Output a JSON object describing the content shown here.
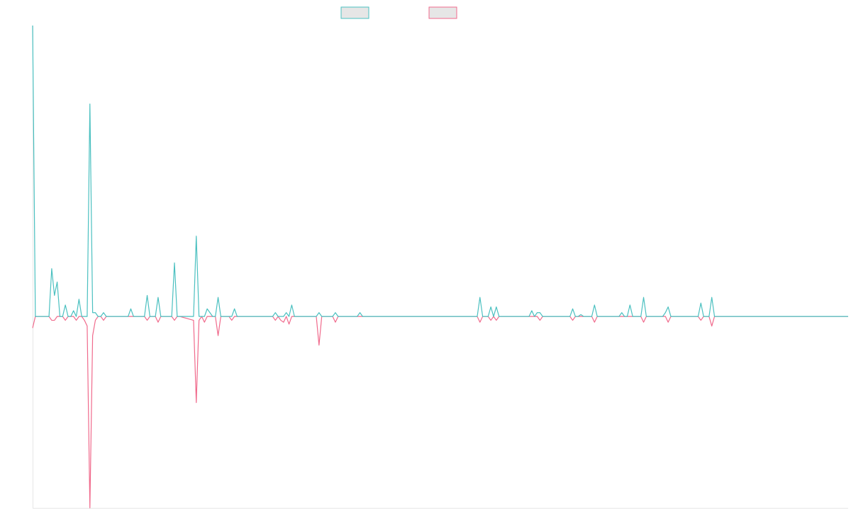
{
  "colors": {
    "series_a": "#4bc0c0",
    "series_b": "#f06a8c",
    "axis": "#e6e6e6",
    "legend_fill": "#e6e6e6"
  },
  "legend": {
    "placement": "top-center",
    "entries": [
      {
        "color": "#4bc0c0",
        "label": ""
      },
      {
        "color": "#f06a8c",
        "label": ""
      }
    ]
  },
  "chart_data": {
    "type": "line",
    "title": "",
    "xlabel": "",
    "ylabel": "",
    "grid": false,
    "ylim": [
      -1.0,
      1.52
    ],
    "x_count": 300,
    "series": [
      {
        "points": [
          [
            0,
            1.52
          ],
          [
            1,
            0.0
          ],
          [
            6,
            0.0
          ],
          [
            7,
            0.25
          ],
          [
            8,
            0.11
          ],
          [
            9,
            0.18
          ],
          [
            10,
            0.0
          ],
          [
            11,
            0.0
          ],
          [
            12,
            0.06
          ],
          [
            13,
            0.0
          ],
          [
            14,
            0.0
          ],
          [
            15,
            0.03
          ],
          [
            16,
            0.0
          ],
          [
            17,
            0.09
          ],
          [
            18,
            0.0
          ],
          [
            19,
            0.0
          ],
          [
            20,
            0.0
          ],
          [
            21,
            1.11
          ],
          [
            22,
            0.02
          ],
          [
            23,
            0.02
          ],
          [
            24,
            0.0
          ],
          [
            25,
            0.0
          ],
          [
            26,
            0.02
          ],
          [
            27,
            0.0
          ],
          [
            35,
            0.0
          ],
          [
            36,
            0.04
          ],
          [
            37,
            0.0
          ],
          [
            38,
            0.0
          ],
          [
            39,
            0.0
          ],
          [
            40,
            0.0
          ],
          [
            41,
            0.0
          ],
          [
            42,
            0.11
          ],
          [
            43,
            0.0
          ],
          [
            44,
            0.0
          ],
          [
            45,
            0.0
          ],
          [
            46,
            0.1
          ],
          [
            47,
            0.0
          ],
          [
            48,
            0.0
          ],
          [
            49,
            0.0
          ],
          [
            51,
            0.0
          ],
          [
            52,
            0.28
          ],
          [
            53,
            0.0
          ],
          [
            54,
            0.0
          ],
          [
            59,
            0.0
          ],
          [
            60,
            0.42
          ],
          [
            61,
            0.0
          ],
          [
            62,
            0.0
          ],
          [
            63,
            0.0
          ],
          [
            64,
            0.04
          ],
          [
            65,
            0.02
          ],
          [
            66,
            0.0
          ],
          [
            67,
            0.0
          ],
          [
            68,
            0.1
          ],
          [
            69,
            0.0
          ],
          [
            70,
            0.0
          ],
          [
            71,
            0.0
          ],
          [
            72,
            0.0
          ],
          [
            73,
            0.0
          ],
          [
            74,
            0.04
          ],
          [
            75,
            0.0
          ],
          [
            79,
            0.0
          ],
          [
            80,
            0.0
          ],
          [
            81,
            0.0
          ],
          [
            82,
            0.0
          ],
          [
            88,
            0.0
          ],
          [
            89,
            0.02
          ],
          [
            90,
            0.0
          ],
          [
            91,
            0.0
          ],
          [
            92,
            0.0
          ],
          [
            93,
            0.02
          ],
          [
            94,
            0.0
          ],
          [
            95,
            0.06
          ],
          [
            96,
            0.0
          ],
          [
            100,
            0.0
          ],
          [
            101,
            0.0
          ],
          [
            102,
            0.0
          ],
          [
            104,
            0.0
          ],
          [
            105,
            0.02
          ],
          [
            106,
            0.0
          ],
          [
            110,
            0.0
          ],
          [
            111,
            0.02
          ],
          [
            112,
            0.0
          ],
          [
            119,
            0.0
          ],
          [
            120,
            0.02
          ],
          [
            121,
            0.0
          ],
          [
            126,
            0.0
          ],
          [
            127,
            0.0
          ],
          [
            128,
            0.0
          ],
          [
            129,
            0.0
          ],
          [
            130,
            0.0
          ],
          [
            163,
            0.0
          ],
          [
            164,
            0.1
          ],
          [
            165,
            0.0
          ],
          [
            166,
            0.0
          ],
          [
            167,
            0.0
          ],
          [
            168,
            0.05
          ],
          [
            169,
            0.0
          ],
          [
            170,
            0.05
          ],
          [
            171,
            0.0
          ],
          [
            172,
            0.0
          ],
          [
            180,
            0.0
          ],
          [
            181,
            0.0
          ],
          [
            182,
            0.0
          ],
          [
            183,
            0.03
          ],
          [
            184,
            0.0
          ],
          [
            185,
            0.02
          ],
          [
            186,
            0.02
          ],
          [
            187,
            0.0
          ],
          [
            197,
            0.0
          ],
          [
            198,
            0.04
          ],
          [
            199,
            0.0
          ],
          [
            200,
            0.0
          ],
          [
            201,
            0.01
          ],
          [
            202,
            0.0
          ],
          [
            203,
            0.0
          ],
          [
            204,
            0.0
          ],
          [
            205,
            0.0
          ],
          [
            206,
            0.06
          ],
          [
            207,
            0.0
          ],
          [
            215,
            0.0
          ],
          [
            216,
            0.02
          ],
          [
            217,
            0.0
          ],
          [
            218,
            0.0
          ],
          [
            219,
            0.06
          ],
          [
            220,
            0.0
          ],
          [
            223,
            0.0
          ],
          [
            224,
            0.1
          ],
          [
            225,
            0.0
          ],
          [
            226,
            0.0
          ],
          [
            227,
            0.0
          ],
          [
            228,
            0.0
          ],
          [
            229,
            0.0
          ],
          [
            230,
            0.0
          ],
          [
            231,
            0.0
          ],
          [
            232,
            0.02
          ],
          [
            233,
            0.05
          ],
          [
            234,
            0.0
          ],
          [
            244,
            0.0
          ],
          [
            245,
            0.07
          ],
          [
            246,
            0.0
          ],
          [
            247,
            0.0
          ],
          [
            248,
            0.0
          ],
          [
            249,
            0.1
          ],
          [
            250,
            0.0
          ],
          [
            299,
            0.0
          ]
        ]
      },
      {
        "points": [
          [
            0,
            -0.06
          ],
          [
            1,
            0.0
          ],
          [
            6,
            0.0
          ],
          [
            7,
            -0.02
          ],
          [
            8,
            -0.02
          ],
          [
            9,
            0.0
          ],
          [
            10,
            0.0
          ],
          [
            11,
            0.0
          ],
          [
            12,
            -0.02
          ],
          [
            13,
            0.0
          ],
          [
            14,
            0.0
          ],
          [
            15,
            0.0
          ],
          [
            16,
            -0.02
          ],
          [
            17,
            0.0
          ],
          [
            18,
            0.0
          ],
          [
            19,
            -0.02
          ],
          [
            20,
            -0.05
          ],
          [
            21,
            -1.0
          ],
          [
            22,
            -0.1
          ],
          [
            23,
            -0.02
          ],
          [
            24,
            0.0
          ],
          [
            25,
            0.0
          ],
          [
            26,
            -0.02
          ],
          [
            27,
            0.0
          ],
          [
            35,
            0.0
          ],
          [
            36,
            0.0
          ],
          [
            37,
            0.0
          ],
          [
            38,
            0.0
          ],
          [
            39,
            0.0
          ],
          [
            40,
            0.0
          ],
          [
            41,
            0.0
          ],
          [
            42,
            -0.02
          ],
          [
            43,
            0.0
          ],
          [
            44,
            0.0
          ],
          [
            45,
            0.0
          ],
          [
            46,
            -0.03
          ],
          [
            47,
            0.0
          ],
          [
            48,
            0.0
          ],
          [
            49,
            0.0
          ],
          [
            51,
            0.0
          ],
          [
            52,
            -0.02
          ],
          [
            53,
            0.0
          ],
          [
            54,
            0.0
          ],
          [
            59,
            -0.02
          ],
          [
            60,
            -0.45
          ],
          [
            61,
            -0.02
          ],
          [
            62,
            0.0
          ],
          [
            63,
            -0.03
          ],
          [
            64,
            0.0
          ],
          [
            65,
            0.0
          ],
          [
            66,
            0.0
          ],
          [
            67,
            0.0
          ],
          [
            68,
            -0.1
          ],
          [
            69,
            0.0
          ],
          [
            70,
            0.0
          ],
          [
            71,
            0.0
          ],
          [
            72,
            0.0
          ],
          [
            73,
            -0.02
          ],
          [
            74,
            0.0
          ],
          [
            75,
            0.0
          ],
          [
            79,
            0.0
          ],
          [
            80,
            0.0
          ],
          [
            81,
            0.0
          ],
          [
            82,
            0.0
          ],
          [
            88,
            0.0
          ],
          [
            89,
            -0.02
          ],
          [
            90,
            0.0
          ],
          [
            91,
            -0.02
          ],
          [
            92,
            -0.03
          ],
          [
            93,
            0.0
          ],
          [
            94,
            -0.04
          ],
          [
            95,
            0.0
          ],
          [
            96,
            0.0
          ],
          [
            100,
            0.0
          ],
          [
            101,
            0.0
          ],
          [
            102,
            0.0
          ],
          [
            104,
            0.0
          ],
          [
            105,
            -0.15
          ],
          [
            106,
            0.0
          ],
          [
            110,
            0.0
          ],
          [
            111,
            -0.03
          ],
          [
            112,
            0.0
          ],
          [
            119,
            0.0
          ],
          [
            120,
            0.0
          ],
          [
            121,
            0.0
          ],
          [
            126,
            0.0
          ],
          [
            127,
            0.0
          ],
          [
            128,
            0.0
          ],
          [
            129,
            0.0
          ],
          [
            130,
            0.0
          ],
          [
            163,
            0.0
          ],
          [
            164,
            -0.03
          ],
          [
            165,
            0.0
          ],
          [
            166,
            0.0
          ],
          [
            167,
            0.0
          ],
          [
            168,
            -0.02
          ],
          [
            169,
            0.0
          ],
          [
            170,
            -0.02
          ],
          [
            171,
            0.0
          ],
          [
            172,
            0.0
          ],
          [
            180,
            0.0
          ],
          [
            181,
            0.0
          ],
          [
            182,
            0.0
          ],
          [
            183,
            0.0
          ],
          [
            184,
            0.0
          ],
          [
            185,
            0.0
          ],
          [
            186,
            -0.02
          ],
          [
            187,
            0.0
          ],
          [
            197,
            0.0
          ],
          [
            198,
            -0.02
          ],
          [
            199,
            0.0
          ],
          [
            200,
            0.0
          ],
          [
            201,
            0.0
          ],
          [
            202,
            0.0
          ],
          [
            203,
            0.0
          ],
          [
            204,
            0.0
          ],
          [
            205,
            0.0
          ],
          [
            206,
            -0.03
          ],
          [
            207,
            0.0
          ],
          [
            215,
            0.0
          ],
          [
            216,
            0.0
          ],
          [
            217,
            0.0
          ],
          [
            218,
            0.0
          ],
          [
            219,
            0.0
          ],
          [
            220,
            0.0
          ],
          [
            223,
            0.0
          ],
          [
            224,
            -0.03
          ],
          [
            225,
            0.0
          ],
          [
            226,
            0.0
          ],
          [
            227,
            0.0
          ],
          [
            228,
            0.0
          ],
          [
            229,
            0.0
          ],
          [
            230,
            0.0
          ],
          [
            231,
            0.0
          ],
          [
            232,
            0.0
          ],
          [
            233,
            -0.03
          ],
          [
            234,
            0.0
          ],
          [
            244,
            0.0
          ],
          [
            245,
            -0.02
          ],
          [
            246,
            0.0
          ],
          [
            247,
            0.0
          ],
          [
            248,
            0.0
          ],
          [
            249,
            -0.05
          ],
          [
            250,
            0.0
          ],
          [
            299,
            0.0
          ]
        ]
      }
    ]
  }
}
